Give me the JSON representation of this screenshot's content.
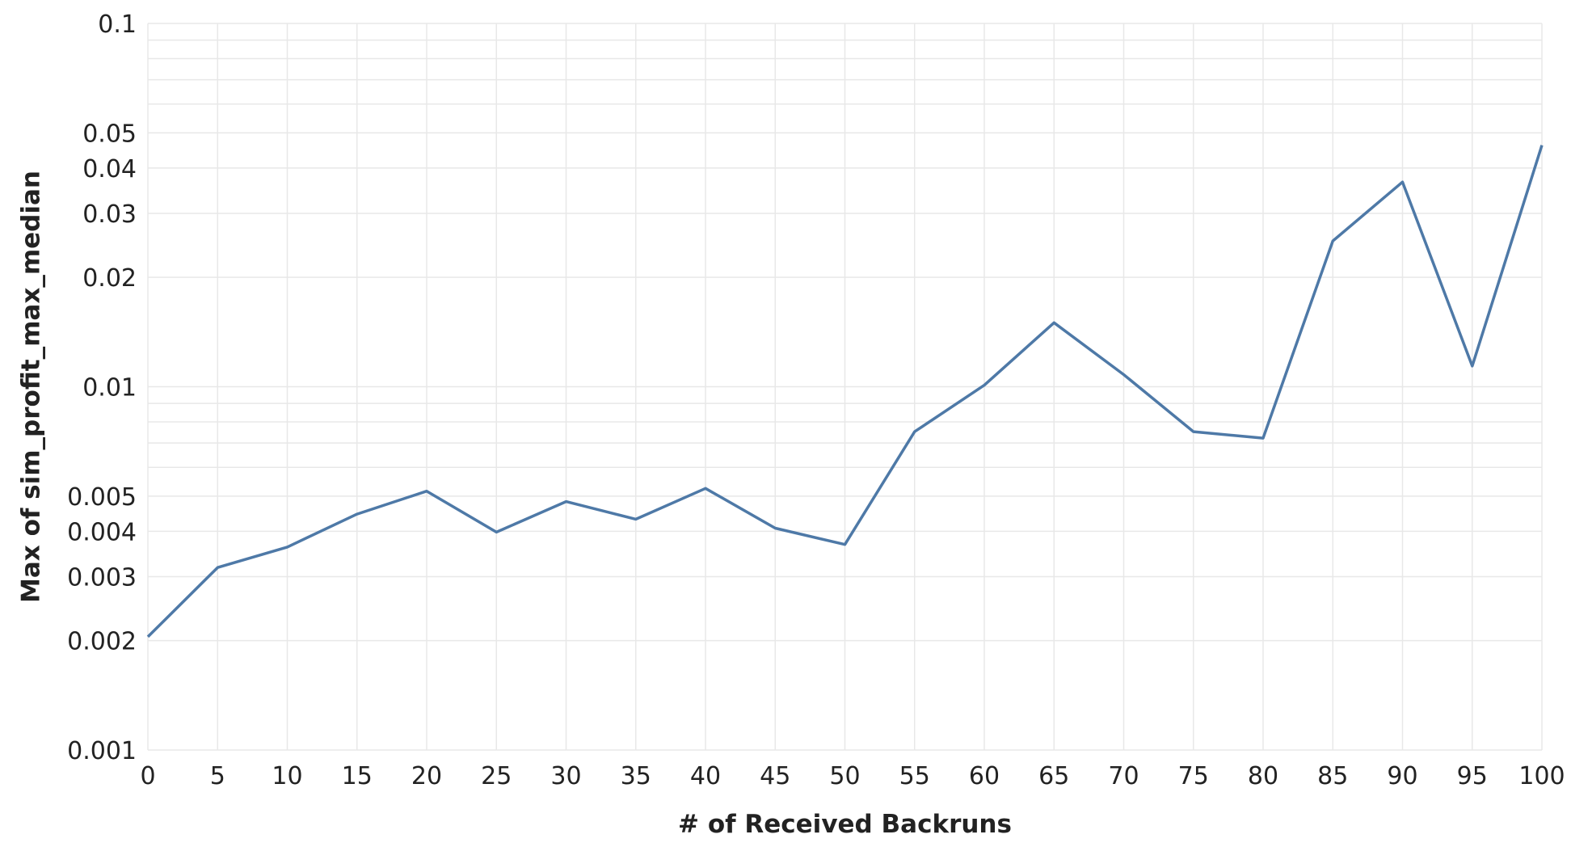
{
  "chart_data": {
    "type": "line",
    "title": "",
    "xlabel": "# of Received Backruns",
    "ylabel": "Max of sim_profit_max_median",
    "x_scale": "linear",
    "y_scale": "log",
    "xlim": [
      0,
      100
    ],
    "ylim": [
      0.001,
      0.1
    ],
    "grid": true,
    "legend": "none",
    "x_ticks": [
      0,
      5,
      10,
      15,
      20,
      25,
      30,
      35,
      40,
      45,
      50,
      55,
      60,
      65,
      70,
      75,
      80,
      85,
      90,
      95,
      100
    ],
    "x_tick_labels": [
      "0",
      "5",
      "10",
      "15",
      "20",
      "25",
      "30",
      "35",
      "40",
      "45",
      "50",
      "55",
      "60",
      "65",
      "70",
      "75",
      "80",
      "85",
      "90",
      "95",
      "100"
    ],
    "y_ticks": [
      0.001,
      0.002,
      0.003,
      0.004,
      0.005,
      0.01,
      0.02,
      0.03,
      0.04,
      0.05,
      0.1
    ],
    "y_tick_labels": [
      "0.001",
      "0.002",
      "0.003",
      "0.004",
      "0.005",
      "0.01",
      "0.02",
      "0.03",
      "0.04",
      "0.05",
      "0.1"
    ],
    "y_minor_grid": [
      0.006,
      0.007,
      0.008,
      0.009,
      0.06,
      0.07,
      0.08,
      0.09
    ],
    "series": [
      {
        "color": "#4e79a7",
        "x": [
          0,
          5,
          10,
          15,
          20,
          25,
          30,
          35,
          40,
          45,
          50,
          55,
          60,
          65,
          70,
          75,
          80,
          85,
          90,
          95,
          100
        ],
        "y": [
          0.00205,
          0.00318,
          0.00362,
          0.00446,
          0.00516,
          0.00398,
          0.00483,
          0.00432,
          0.00525,
          0.00408,
          0.00368,
          0.00752,
          0.0101,
          0.015,
          0.0108,
          0.00752,
          0.00722,
          0.0252,
          0.0366,
          0.0114,
          0.0462
        ]
      }
    ]
  }
}
